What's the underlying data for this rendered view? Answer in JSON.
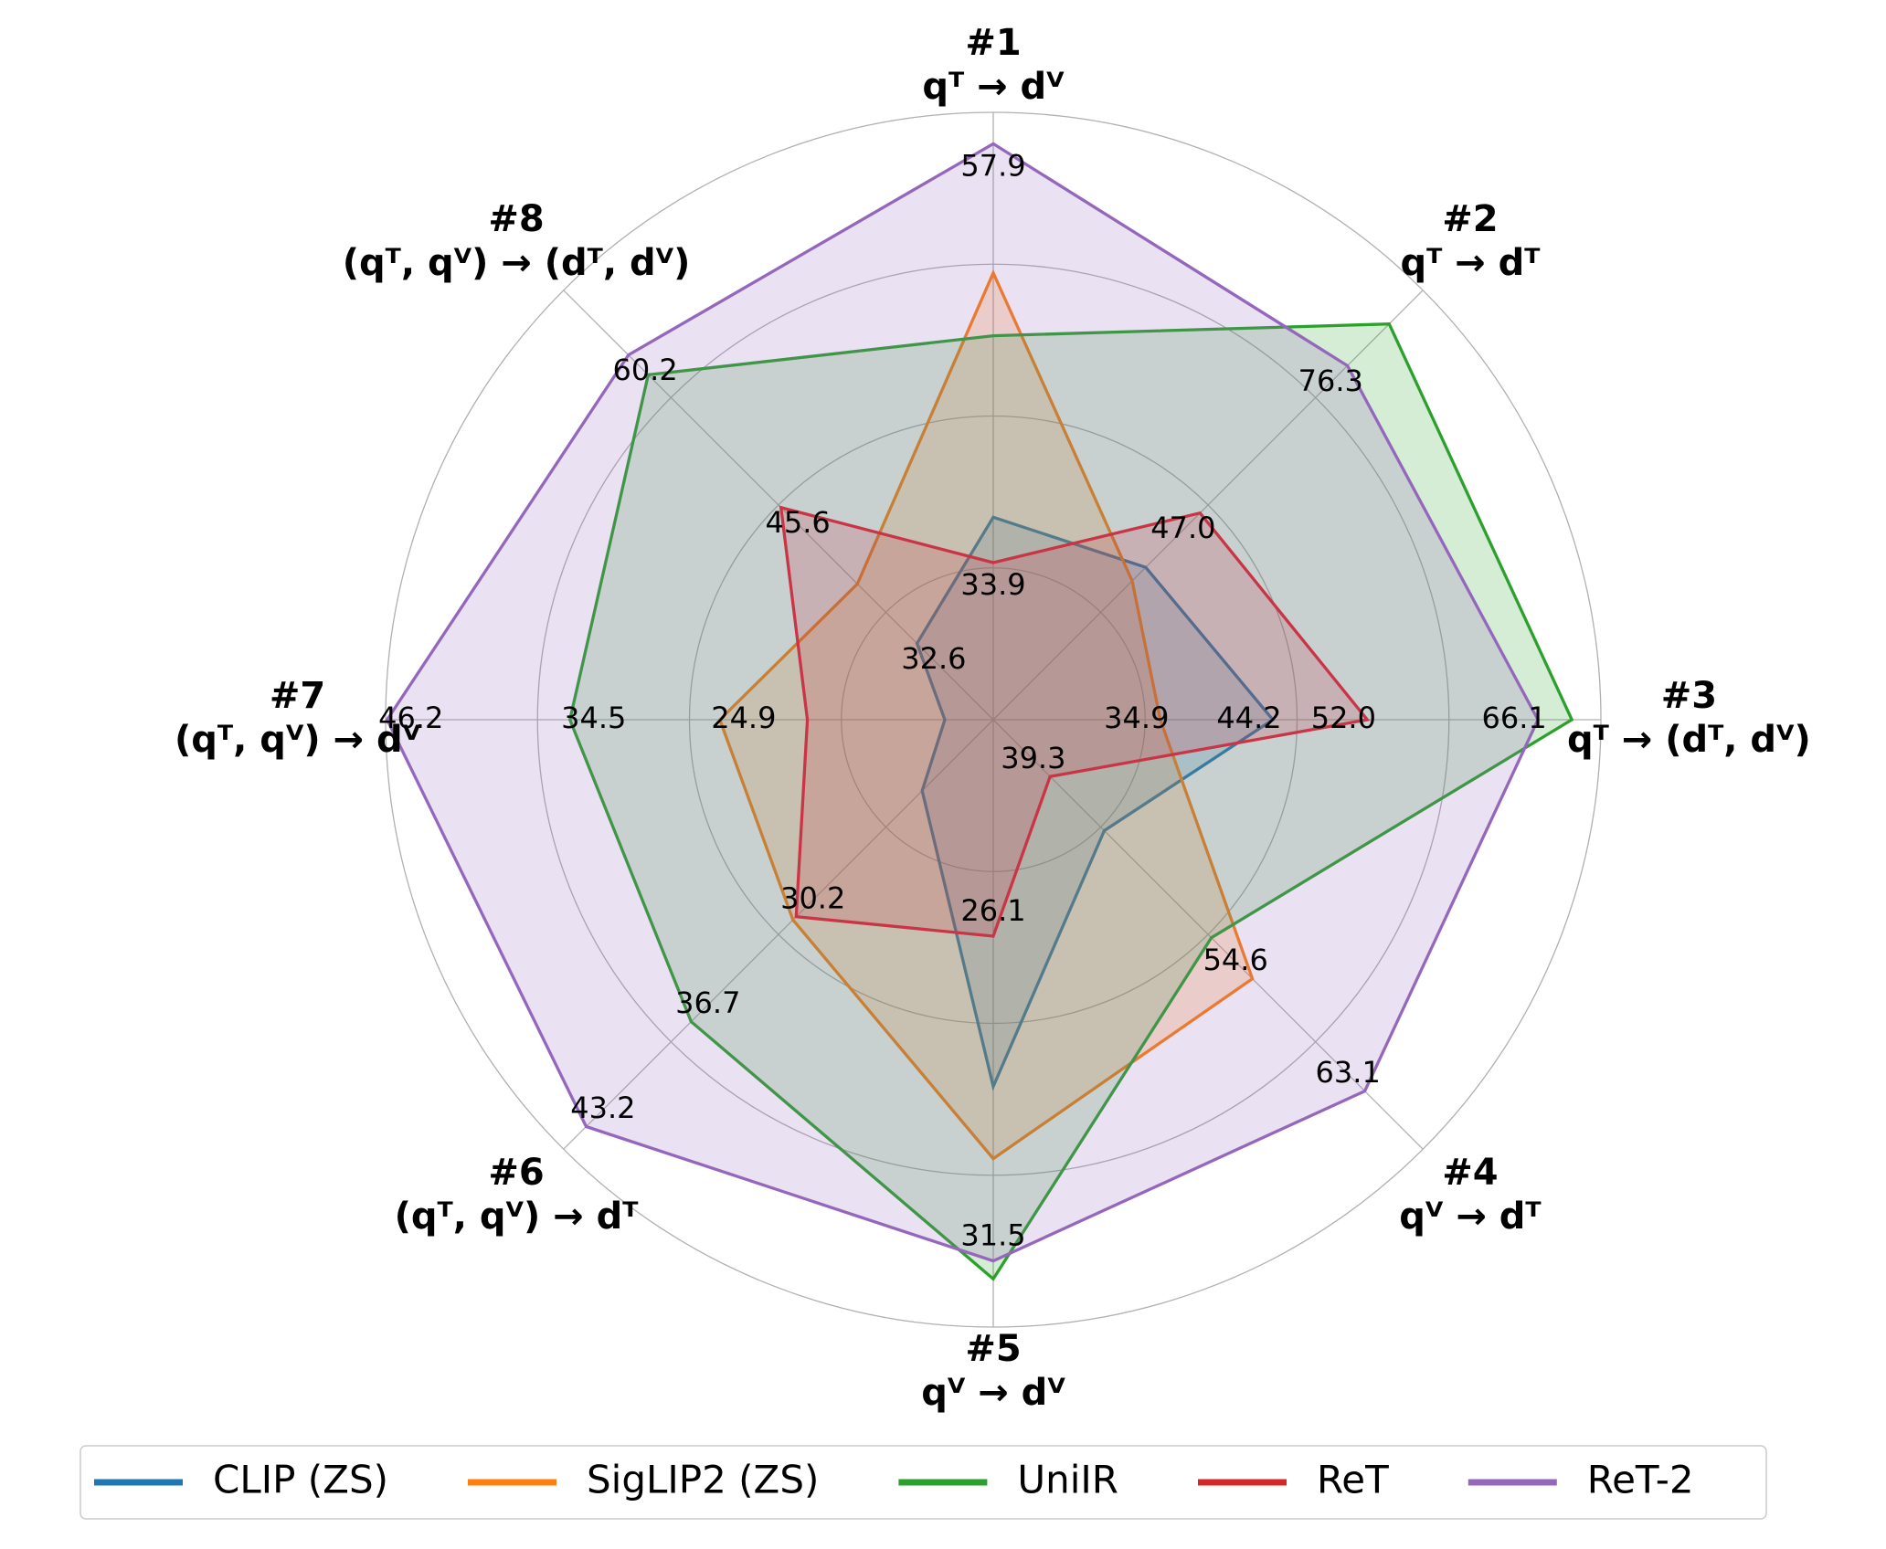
{
  "chart_data": {
    "type": "radar",
    "categories": [
      "#1",
      "#2",
      "#3",
      "#4",
      "#5",
      "#6",
      "#7",
      "#8"
    ],
    "category_subtitles": [
      "qᵀ → dⱽ",
      "qᵀ → dᵀ",
      "qᵀ → (dᵀ, dⱽ)",
      "qⱽ → dᵀ",
      "qⱽ → dⱽ",
      "(qᵀ, qⱽ) → dᵀ",
      "(qᵀ, qⱽ) → dⱽ",
      "(qᵀ, qⱽ) → (dᵀ, dⱽ)"
    ],
    "rlim": [
      [
        24.9,
        59.7
      ],
      [
        5.9,
        91.3
      ],
      [
        21.1,
        71.3
      ],
      [
        35.0,
        67.5
      ],
      [
        22.5,
        32.6
      ],
      [
        18.0,
        44.6
      ],
      [
        7.4,
        46.3
      ],
      [
        25.3,
        66.4
      ]
    ],
    "series": [
      {
        "name": "CLIP (ZS)",
        "color": "#1f77b4",
        "values": [
          36.5,
          36.2,
          44.2,
          43.4,
          28.6,
          22.4,
          10.5,
          32.6
        ],
        "value_labels": [
          null,
          null,
          "44.2",
          null,
          null,
          null,
          null,
          "32.6"
        ]
      },
      {
        "name": "SigLIP2 (ZS)",
        "color": "#ff7f0e",
        "values": [
          50.5,
          33.5,
          34.9,
          54.6,
          29.8,
          30.4,
          24.9,
          38.3
        ],
        "value_labels": [
          null,
          null,
          "34.9",
          "54.6",
          null,
          null,
          "24.9",
          null
        ]
      },
      {
        "name": "UniIR",
        "color": "#2ca02c",
        "values": [
          46.9,
          84.6,
          68.9,
          51.5,
          31.8,
          36.7,
          34.5,
          58.3
        ],
        "value_labels": [
          null,
          null,
          null,
          null,
          null,
          "36.7",
          "34.5",
          null
        ]
      },
      {
        "name": "ReT",
        "color": "#d62728",
        "values": [
          33.9,
          47.0,
          52.0,
          39.3,
          26.1,
          30.2,
          19.3,
          45.6
        ],
        "value_labels": [
          "33.9",
          "47.0",
          "52.0",
          "39.3",
          "26.1",
          "30.2",
          null,
          "45.6"
        ]
      },
      {
        "name": "ReT-2",
        "color": "#9467bd",
        "values": [
          57.9,
          76.3,
          66.1,
          63.1,
          31.5,
          43.2,
          46.2,
          60.2
        ],
        "value_labels": [
          "57.9",
          "76.3",
          "66.1",
          "63.1",
          "31.5",
          "43.2",
          "46.2",
          "60.2"
        ]
      }
    ],
    "fill_opacity": 0.2,
    "grid": true,
    "legend": "bottom"
  }
}
